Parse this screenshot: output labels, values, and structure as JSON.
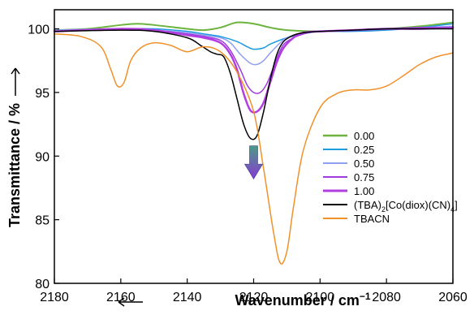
{
  "chart_data": {
    "type": "line",
    "xlabel": "Wavenumber / cm",
    "xlabel_sup": "−1",
    "ylabel": "Transmittance / %",
    "xlim": [
      2180,
      2060
    ],
    "ylim": [
      80,
      101.5
    ],
    "x_reversed": true,
    "xticks": [
      2180,
      2160,
      2140,
      2120,
      2100,
      2080,
      2060
    ],
    "yticks": [
      80,
      85,
      90,
      95,
      100
    ],
    "grid": false,
    "legend_position": "right",
    "annotation": {
      "type": "arrow",
      "direction": "down",
      "from": [
        2120,
        90.8
      ],
      "to": [
        2120,
        88.2
      ],
      "colors": [
        "#4a9a8a",
        "#8a3ad0"
      ]
    },
    "series": [
      {
        "name": "0.00",
        "legend": {
          "text": "0.00"
        },
        "color": "#6db33f",
        "width": 2,
        "x": [
          2180,
          2170,
          2160,
          2155,
          2150,
          2140,
          2135,
          2130,
          2125,
          2120,
          2115,
          2110,
          2100,
          2090,
          2080,
          2070,
          2060
        ],
        "y": [
          99.9,
          100.0,
          100.3,
          100.4,
          100.3,
          100.0,
          99.9,
          100.1,
          100.5,
          100.4,
          100.1,
          99.9,
          99.8,
          99.9,
          100.0,
          100.2,
          100.5
        ]
      },
      {
        "name": "0.25",
        "legend": {
          "text": "0.25"
        },
        "color": "#1e9be0",
        "width": 1.5,
        "x": [
          2180,
          2160,
          2150,
          2140,
          2135,
          2130,
          2125,
          2122,
          2120,
          2117,
          2115,
          2110,
          2105,
          2100,
          2090,
          2080,
          2070,
          2060
        ],
        "y": [
          99.9,
          100.0,
          100.0,
          99.8,
          99.6,
          99.4,
          99.0,
          98.6,
          98.4,
          98.5,
          98.8,
          99.3,
          99.6,
          99.8,
          99.8,
          99.9,
          100.1,
          100.4
        ]
      },
      {
        "name": "0.50",
        "legend": {
          "text": "0.50"
        },
        "color": "#8ea0ef",
        "width": 1.5,
        "x": [
          2180,
          2160,
          2150,
          2140,
          2135,
          2130,
          2127,
          2124,
          2121,
          2119,
          2117,
          2115,
          2112,
          2110,
          2105,
          2100,
          2090,
          2080,
          2070,
          2060
        ],
        "y": [
          99.9,
          100.0,
          99.9,
          99.7,
          99.5,
          99.3,
          98.9,
          98.0,
          97.3,
          97.2,
          97.5,
          98.1,
          98.9,
          99.3,
          99.7,
          99.8,
          99.9,
          100.0,
          100.1,
          100.2
        ]
      },
      {
        "name": "0.75",
        "legend": {
          "text": "0.75"
        },
        "color": "#a03be0",
        "width": 1.5,
        "x": [
          2180,
          2160,
          2150,
          2140,
          2135,
          2130,
          2127,
          2124,
          2122,
          2120,
          2118,
          2116,
          2114,
          2112,
          2110,
          2105,
          2100,
          2090,
          2080,
          2070,
          2060
        ],
        "y": [
          99.8,
          100.0,
          99.9,
          99.6,
          99.4,
          99.1,
          98.3,
          96.8,
          95.6,
          95.0,
          95.0,
          95.7,
          97.0,
          98.3,
          99.0,
          99.6,
          99.8,
          99.9,
          100.0,
          100.1,
          100.1
        ]
      },
      {
        "name": "1.00",
        "legend": {
          "text": "1.00"
        },
        "color": "#b23ee0",
        "width": 2.5,
        "x": [
          2180,
          2160,
          2150,
          2140,
          2135,
          2130,
          2127,
          2125,
          2123,
          2121,
          2119,
          2117,
          2115,
          2113,
          2111,
          2108,
          2105,
          2100,
          2090,
          2080,
          2070,
          2060
        ],
        "y": [
          99.8,
          100.0,
          99.9,
          99.5,
          99.3,
          98.9,
          98.0,
          96.8,
          94.9,
          93.6,
          93.5,
          94.2,
          95.8,
          97.4,
          98.5,
          99.3,
          99.7,
          99.8,
          99.9,
          100.0,
          100.0,
          100.1
        ]
      },
      {
        "name": "(TBA)2[Co(diox)(CN)4]",
        "legend": {
          "base": "(TBA)",
          "sub": "2",
          "rest": "[Co(diox)(CN)",
          "sub2": "4",
          "end": "]"
        },
        "color": "#000000",
        "width": 1.5,
        "x": [
          2180,
          2160,
          2150,
          2140,
          2136,
          2133,
          2131,
          2129,
          2127,
          2125,
          2123,
          2121,
          2119,
          2117,
          2115,
          2113,
          2111,
          2108,
          2105,
          2100,
          2090,
          2080,
          2070,
          2060
        ],
        "y": [
          99.8,
          99.9,
          99.8,
          99.3,
          98.7,
          98.2,
          98.0,
          97.8,
          96.5,
          94.5,
          92.5,
          91.4,
          91.6,
          93.5,
          96.0,
          98.0,
          99.0,
          99.5,
          99.7,
          99.8,
          99.9,
          100.0,
          100.0,
          100.0
        ]
      },
      {
        "name": "TBACN",
        "legend": {
          "text": "TBACN"
        },
        "color": "#f0912a",
        "width": 1.5,
        "x": [
          2180,
          2172,
          2166,
          2163,
          2161,
          2159,
          2157,
          2154,
          2150,
          2145,
          2140,
          2135,
          2130,
          2125,
          2120,
          2117,
          2114,
          2112,
          2110,
          2108,
          2105,
          2100,
          2095,
          2090,
          2085,
          2080,
          2075,
          2070,
          2065,
          2060
        ],
        "y": [
          99.6,
          99.4,
          98.6,
          96.8,
          95.5,
          95.8,
          97.5,
          98.5,
          98.9,
          98.7,
          98.2,
          98.6,
          98.2,
          96.6,
          93.5,
          89.0,
          84.0,
          81.6,
          82.5,
          86.0,
          90.5,
          93.8,
          94.9,
          95.2,
          95.2,
          95.5,
          96.3,
          97.2,
          97.8,
          98.1
        ]
      }
    ]
  }
}
